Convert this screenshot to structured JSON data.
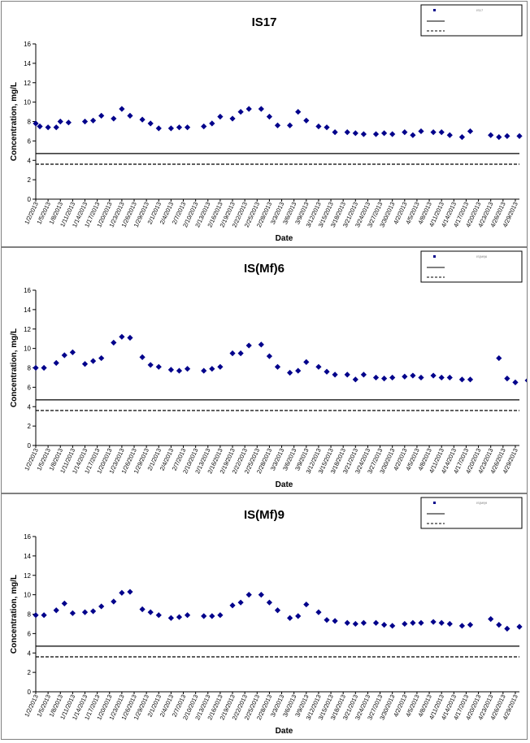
{
  "chart_data": [
    {
      "type": "scatter",
      "title": "IS17",
      "xlabel": "Date",
      "ylabel": "Concentration, mg/L",
      "ylim": [
        0,
        16
      ],
      "yticks": [
        0,
        2,
        4,
        6,
        8,
        10,
        12,
        14,
        16
      ],
      "grid": false,
      "legend_position": "top-right",
      "legend_entries": [
        "IS17",
        "",
        ""
      ],
      "xtick_labels": [
        "1/2/2013",
        "1/5/2013",
        "1/8/2013",
        "1/11/2013",
        "1/14/2013",
        "1/17/2013",
        "1/20/2013",
        "1/23/2013",
        "1/26/2013",
        "1/29/2013",
        "2/1/2013",
        "2/4/2013",
        "2/7/2013",
        "2/10/2013",
        "2/13/2013",
        "2/16/2013",
        "2/19/2013",
        "2/22/2013",
        "2/25/2013",
        "2/28/2013",
        "3/3/2013",
        "3/6/2013",
        "3/9/2013",
        "3/12/2013",
        "3/15/2013",
        "3/18/2013",
        "3/21/2013",
        "3/24/2013",
        "3/27/2013",
        "3/30/2013",
        "4/2/2013",
        "4/5/2013",
        "4/8/2013",
        "4/11/2013",
        "4/14/2013",
        "4/17/2013",
        "4/20/2013",
        "4/23/2013",
        "4/26/2013",
        "4/29/2013"
      ],
      "xlim": [
        "1/2/2013",
        "4/30/2013"
      ],
      "series": [
        {
          "x": [
            "1/2/2013",
            "1/3/2013",
            "1/5/2013",
            "1/7/2013",
            "1/8/2013",
            "1/10/2013",
            "1/14/2013",
            "1/16/2013",
            "1/18/2013",
            "1/21/2013",
            "1/23/2013",
            "1/25/2013",
            "1/28/2013",
            "1/30/2013",
            "2/1/2013",
            "2/4/2013",
            "2/6/2013",
            "2/8/2013",
            "2/12/2013",
            "2/14/2013",
            "2/16/2013",
            "2/19/2013",
            "2/21/2013",
            "2/23/2013",
            "2/26/2013",
            "2/28/2013",
            "3/2/2013",
            "3/5/2013",
            "3/7/2013",
            "3/9/2013",
            "3/12/2013",
            "3/14/2013",
            "3/16/2013",
            "3/19/2013",
            "3/21/2013",
            "3/23/2013",
            "3/26/2013",
            "3/28/2013",
            "3/30/2013",
            "4/2/2013",
            "4/4/2013",
            "4/6/2013",
            "4/9/2013",
            "4/11/2013",
            "4/13/2013",
            "4/16/2013",
            "4/18/2013",
            "4/23/2013",
            "4/25/2013",
            "4/27/2013",
            "4/30/2013"
          ],
          "y": [
            7.8,
            7.5,
            7.4,
            7.4,
            8.0,
            7.9,
            8.0,
            8.1,
            8.6,
            8.3,
            9.3,
            8.6,
            8.2,
            7.8,
            7.3,
            7.3,
            7.4,
            7.4,
            7.5,
            7.8,
            8.5,
            8.3,
            9.0,
            9.3,
            9.3,
            8.5,
            7.6,
            7.6,
            9.0,
            8.1,
            7.5,
            7.4,
            6.9,
            6.9,
            6.8,
            6.7,
            6.7,
            6.8,
            6.7,
            6.9,
            6.6,
            7.0,
            6.9,
            6.9,
            6.6,
            6.4,
            7.0,
            6.6,
            6.4,
            6.5,
            6.5
          ]
        }
      ],
      "reference_lines": [
        {
          "y": 4.7,
          "style": "solid"
        },
        {
          "y": 3.6,
          "style": "dashed"
        }
      ],
      "colors": {
        "marker": "#00008b",
        "line": "#000000"
      }
    },
    {
      "type": "scatter",
      "title": "IS(Mf)6",
      "xlabel": "Date",
      "ylabel": "Concentration, mg/L",
      "ylim": [
        0,
        16
      ],
      "yticks": [
        0,
        2,
        4,
        6,
        8,
        10,
        12,
        14,
        16
      ],
      "grid": false,
      "legend_position": "top-right",
      "legend_entries": [
        "IS(Mf)6",
        "",
        ""
      ],
      "xtick_labels": [
        "1/2/2013",
        "1/5/2013",
        "1/8/2013",
        "1/11/2013",
        "1/14/2013",
        "1/17/2013",
        "1/20/2013",
        "1/23/2013",
        "1/26/2013",
        "1/29/2013",
        "2/1/2013",
        "2/4/2013",
        "2/7/2013",
        "2/10/2013",
        "2/13/2013",
        "2/16/2013",
        "2/19/2013",
        "2/22/2013",
        "2/25/2013",
        "2/28/2013",
        "3/3/2013",
        "3/6/2013",
        "3/9/2013",
        "3/12/2013",
        "3/15/2013",
        "3/18/2013",
        "3/21/2013",
        "3/24/2013",
        "3/27/2013",
        "3/30/2013",
        "4/2/2013",
        "4/5/2013",
        "4/8/2013",
        "4/11/2013",
        "4/14/2013",
        "4/17/2013",
        "4/20/2013",
        "4/23/2013",
        "4/26/2013",
        "4/29/2013"
      ],
      "xlim": [
        "1/2/2013",
        "4/30/2013"
      ],
      "series": [
        {
          "x": [
            "1/2/2013",
            "1/4/2013",
            "1/7/2013",
            "1/9/2013",
            "1/11/2013",
            "1/14/2013",
            "1/16/2013",
            "1/18/2013",
            "1/21/2013",
            "1/23/2013",
            "1/25/2013",
            "1/28/2013",
            "1/30/2013",
            "2/1/2013",
            "2/4/2013",
            "2/6/2013",
            "2/8/2013",
            "2/12/2013",
            "2/14/2013",
            "2/16/2013",
            "2/19/2013",
            "2/21/2013",
            "2/23/2013",
            "2/26/2013",
            "2/28/2013",
            "3/2/2013",
            "3/5/2013",
            "3/7/2013",
            "3/9/2013",
            "3/12/2013",
            "3/14/2013",
            "3/16/2013",
            "3/19/2013",
            "3/21/2013",
            "3/23/2013",
            "3/26/2013",
            "3/28/2013",
            "3/30/2013",
            "4/2/2013",
            "4/4/2013",
            "4/6/2013",
            "4/9/2013",
            "4/11/2013",
            "4/13/2013",
            "4/16/2013",
            "4/18/2013",
            "4/25/2013",
            "4/27/2013",
            "4/29/2013",
            "5/2/2013"
          ],
          "y": [
            8.0,
            8.0,
            8.5,
            9.3,
            9.6,
            8.4,
            8.7,
            9.0,
            10.6,
            11.2,
            11.1,
            9.1,
            8.3,
            8.1,
            7.8,
            7.7,
            7.9,
            7.7,
            7.9,
            8.1,
            9.5,
            9.5,
            10.3,
            10.4,
            9.2,
            8.1,
            7.5,
            7.7,
            8.6,
            8.1,
            7.6,
            7.3,
            7.3,
            6.8,
            7.3,
            7.0,
            6.9,
            7.0,
            7.1,
            7.2,
            7.0,
            7.2,
            7.0,
            7.0,
            6.8,
            6.8,
            9.0,
            6.9,
            6.5,
            6.7
          ]
        }
      ],
      "reference_lines": [
        {
          "y": 4.7,
          "style": "solid"
        },
        {
          "y": 3.6,
          "style": "dashed"
        }
      ],
      "colors": {
        "marker": "#00008b",
        "line": "#000000"
      }
    },
    {
      "type": "scatter",
      "title": "IS(Mf)9",
      "xlabel": "Date",
      "ylabel": "Concentration, mg/L",
      "ylim": [
        0,
        16
      ],
      "yticks": [
        0,
        2,
        4,
        6,
        8,
        10,
        12,
        14,
        16
      ],
      "grid": false,
      "legend_position": "top-right",
      "legend_entries": [
        "IS(Mf)9",
        "",
        ""
      ],
      "xtick_labels": [
        "1/2/2013",
        "1/5/2013",
        "1/8/2013",
        "1/11/2013",
        "1/14/2013",
        "1/17/2013",
        "1/20/2013",
        "1/23/2013",
        "1/26/2013",
        "1/29/2013",
        "2/1/2013",
        "2/4/2013",
        "2/7/2013",
        "2/10/2013",
        "2/13/2013",
        "2/16/2013",
        "2/19/2013",
        "2/22/2013",
        "2/25/2013",
        "2/28/2013",
        "3/3/2013",
        "3/6/2013",
        "3/9/2013",
        "3/12/2013",
        "3/15/2013",
        "3/18/2013",
        "3/21/2013",
        "3/24/2013",
        "3/27/2013",
        "3/30/2013",
        "4/2/2013",
        "4/5/2013",
        "4/8/2013",
        "4/11/2013",
        "4/14/2013",
        "4/17/2013",
        "4/20/2013",
        "4/23/2013",
        "4/26/2013",
        "4/29/2013"
      ],
      "xlim": [
        "1/2/2013",
        "4/30/2013"
      ],
      "series": [
        {
          "x": [
            "1/2/2013",
            "1/4/2013",
            "1/7/2013",
            "1/9/2013",
            "1/11/2013",
            "1/14/2013",
            "1/16/2013",
            "1/18/2013",
            "1/21/2013",
            "1/23/2013",
            "1/25/2013",
            "1/28/2013",
            "1/30/2013",
            "2/1/2013",
            "2/4/2013",
            "2/6/2013",
            "2/8/2013",
            "2/12/2013",
            "2/14/2013",
            "2/16/2013",
            "2/19/2013",
            "2/21/2013",
            "2/23/2013",
            "2/26/2013",
            "2/28/2013",
            "3/2/2013",
            "3/5/2013",
            "3/7/2013",
            "3/9/2013",
            "3/12/2013",
            "3/14/2013",
            "3/16/2013",
            "3/19/2013",
            "3/21/2013",
            "3/23/2013",
            "3/26/2013",
            "3/28/2013",
            "3/30/2013",
            "4/2/2013",
            "4/4/2013",
            "4/6/2013",
            "4/9/2013",
            "4/11/2013",
            "4/13/2013",
            "4/16/2013",
            "4/18/2013",
            "4/23/2013",
            "4/25/2013",
            "4/27/2013",
            "4/30/2013"
          ],
          "y": [
            7.9,
            7.9,
            8.4,
            9.1,
            8.1,
            8.2,
            8.3,
            8.8,
            9.3,
            10.2,
            10.3,
            8.5,
            8.2,
            7.9,
            7.6,
            7.7,
            7.9,
            7.8,
            7.8,
            7.9,
            8.9,
            9.2,
            10.0,
            10.0,
            9.2,
            8.4,
            7.6,
            7.8,
            9.0,
            8.2,
            7.4,
            7.3,
            7.1,
            7.0,
            7.1,
            7.1,
            6.9,
            6.8,
            7.0,
            7.1,
            7.1,
            7.2,
            7.1,
            7.0,
            6.8,
            6.9,
            7.5,
            6.9,
            6.5,
            6.7
          ]
        }
      ],
      "reference_lines": [
        {
          "y": 4.7,
          "style": "solid"
        },
        {
          "y": 3.6,
          "style": "dashed"
        }
      ],
      "colors": {
        "marker": "#00008b",
        "line": "#000000"
      }
    }
  ]
}
